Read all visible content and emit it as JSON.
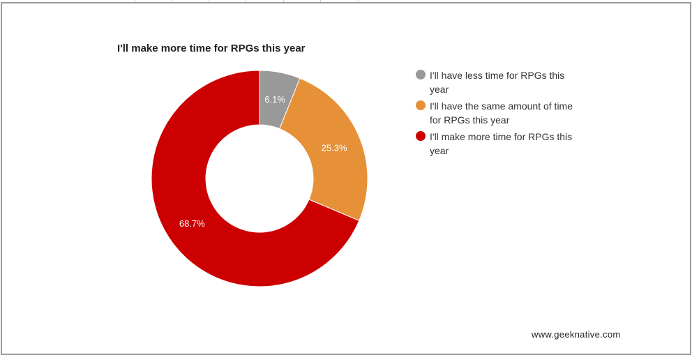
{
  "chart_data": {
    "type": "pie",
    "donut": true,
    "title": "I'll make more time for RPGs this year",
    "categories": [
      "I'll have less time for RPGs this year",
      "I'll have the same amount of time for RPGs this year",
      "I'll make more time for RPGs this year"
    ],
    "values": [
      6.1,
      25.3,
      68.7
    ],
    "value_labels": [
      "6.1%",
      "25.3%",
      "68.7%"
    ],
    "colors": [
      "#999999",
      "#e69138",
      "#cc0000"
    ],
    "legend_position": "right"
  },
  "chart": {
    "title": "I'll make more time for RPGs this year",
    "legend": [
      {
        "label": "I'll have less time for RPGs this year",
        "color": "#999999"
      },
      {
        "label": "I'll have the same amount of time for RPGs this year",
        "color": "#e69138"
      },
      {
        "label": "I'll make more time for RPGs this year",
        "color": "#cc0000"
      }
    ],
    "slice_labels": [
      "6.1%",
      "25.3%",
      "68.7%"
    ]
  },
  "footer": {
    "credit": "www.geeknative.com"
  }
}
